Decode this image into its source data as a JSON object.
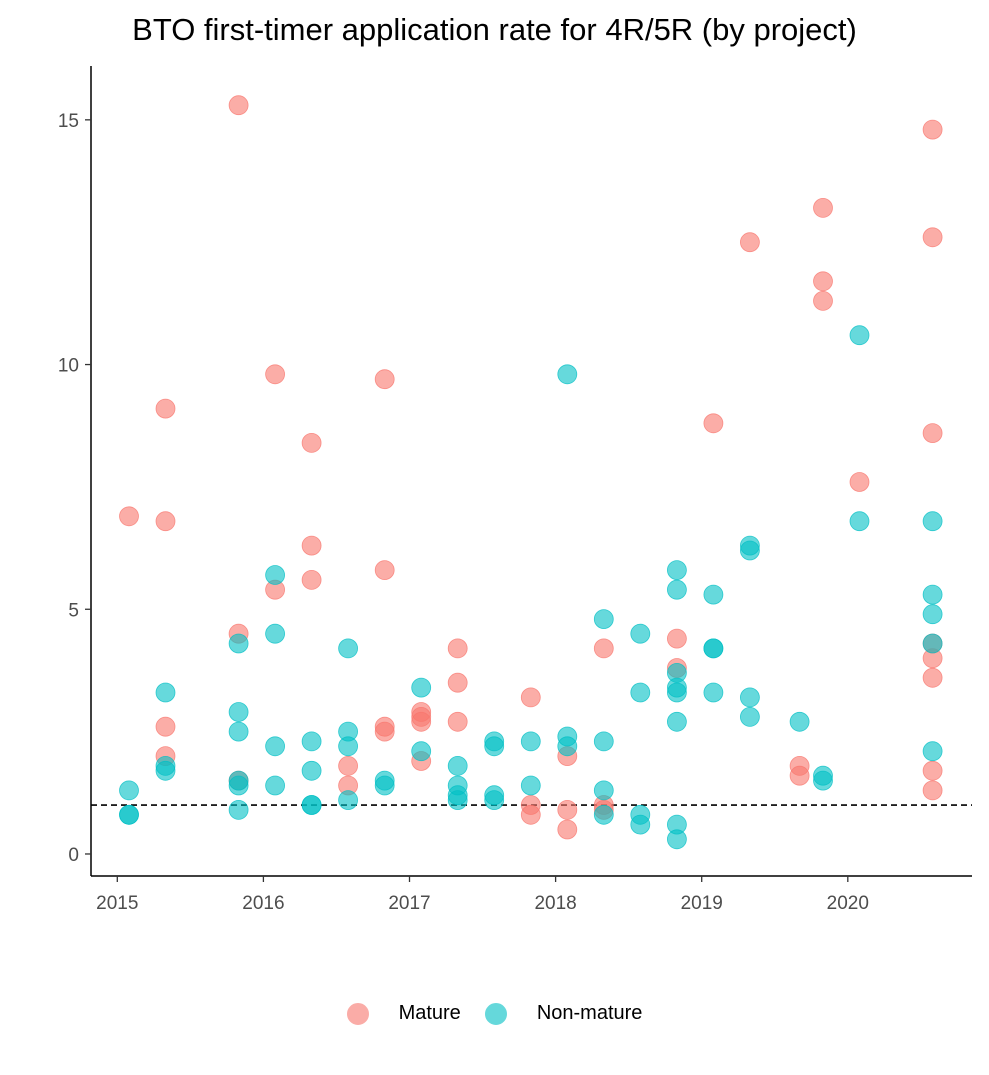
{
  "chart_data": {
    "type": "scatter",
    "title": "BTO first-timer application rate for 4R/5R (by project)",
    "xlabel": "",
    "ylabel": "",
    "xlim": [
      2014.82,
      2020.85
    ],
    "ylim": [
      -0.45,
      16.1
    ],
    "x_ticks": [
      "2015",
      "2016",
      "2017",
      "2018",
      "2019",
      "2020"
    ],
    "y_ticks": [
      "0",
      "5",
      "10",
      "15"
    ],
    "reference_line": {
      "y": 1,
      "style": "dashed"
    },
    "legend_position": "bottom",
    "series": [
      {
        "name": "Mature",
        "color": "#F8766D",
        "points": [
          [
            2015.08,
            6.9
          ],
          [
            2015.33,
            9.1
          ],
          [
            2015.33,
            6.8
          ],
          [
            2015.33,
            2.6
          ],
          [
            2015.33,
            2.0
          ],
          [
            2015.83,
            15.3
          ],
          [
            2015.83,
            4.5
          ],
          [
            2015.83,
            1.5
          ],
          [
            2016.08,
            9.8
          ],
          [
            2016.08,
            5.4
          ],
          [
            2016.33,
            8.4
          ],
          [
            2016.33,
            6.3
          ],
          [
            2016.33,
            5.6
          ],
          [
            2016.58,
            1.8
          ],
          [
            2016.58,
            1.4
          ],
          [
            2016.83,
            9.7
          ],
          [
            2016.83,
            5.8
          ],
          [
            2016.83,
            2.6
          ],
          [
            2016.83,
            2.5
          ],
          [
            2017.08,
            2.9
          ],
          [
            2017.08,
            2.8
          ],
          [
            2017.08,
            2.7
          ],
          [
            2017.08,
            1.9
          ],
          [
            2017.33,
            4.2
          ],
          [
            2017.33,
            3.5
          ],
          [
            2017.33,
            2.7
          ],
          [
            2017.83,
            3.2
          ],
          [
            2017.83,
            1.0
          ],
          [
            2017.83,
            0.8
          ],
          [
            2018.08,
            2.0
          ],
          [
            2018.08,
            0.9
          ],
          [
            2018.08,
            0.5
          ],
          [
            2018.33,
            4.2
          ],
          [
            2018.33,
            1.0
          ],
          [
            2018.33,
            0.9
          ],
          [
            2018.83,
            4.4
          ],
          [
            2018.83,
            3.8
          ],
          [
            2019.08,
            8.8
          ],
          [
            2019.33,
            12.5
          ],
          [
            2019.67,
            1.8
          ],
          [
            2019.67,
            1.6
          ],
          [
            2019.83,
            13.2
          ],
          [
            2019.83,
            11.7
          ],
          [
            2019.83,
            11.3
          ],
          [
            2020.08,
            7.6
          ],
          [
            2020.58,
            14.8
          ],
          [
            2020.58,
            12.6
          ],
          [
            2020.58,
            8.6
          ],
          [
            2020.58,
            4.3
          ],
          [
            2020.58,
            4.0
          ],
          [
            2020.58,
            3.6
          ],
          [
            2020.58,
            1.7
          ],
          [
            2020.58,
            1.3
          ]
        ]
      },
      {
        "name": "Non-mature",
        "color": "#00BFC4",
        "points": [
          [
            2015.08,
            1.3
          ],
          [
            2015.08,
            0.8
          ],
          [
            2015.08,
            0.8
          ],
          [
            2015.33,
            3.3
          ],
          [
            2015.33,
            1.8
          ],
          [
            2015.33,
            1.7
          ],
          [
            2015.83,
            4.3
          ],
          [
            2015.83,
            2.9
          ],
          [
            2015.83,
            2.5
          ],
          [
            2015.83,
            1.5
          ],
          [
            2015.83,
            1.4
          ],
          [
            2015.83,
            0.9
          ],
          [
            2016.08,
            5.7
          ],
          [
            2016.08,
            4.5
          ],
          [
            2016.08,
            2.2
          ],
          [
            2016.08,
            1.4
          ],
          [
            2016.33,
            2.3
          ],
          [
            2016.33,
            1.7
          ],
          [
            2016.33,
            1.0
          ],
          [
            2016.33,
            1.0
          ],
          [
            2016.58,
            4.2
          ],
          [
            2016.58,
            2.5
          ],
          [
            2016.58,
            2.2
          ],
          [
            2016.58,
            1.1
          ],
          [
            2016.83,
            1.5
          ],
          [
            2016.83,
            1.4
          ],
          [
            2017.08,
            3.4
          ],
          [
            2017.08,
            2.1
          ],
          [
            2017.33,
            1.8
          ],
          [
            2017.33,
            1.4
          ],
          [
            2017.33,
            1.2
          ],
          [
            2017.33,
            1.1
          ],
          [
            2017.58,
            2.3
          ],
          [
            2017.58,
            2.2
          ],
          [
            2017.58,
            1.2
          ],
          [
            2017.58,
            1.1
          ],
          [
            2017.83,
            2.3
          ],
          [
            2017.83,
            1.4
          ],
          [
            2018.08,
            9.8
          ],
          [
            2018.08,
            2.4
          ],
          [
            2018.08,
            2.2
          ],
          [
            2018.33,
            4.8
          ],
          [
            2018.33,
            2.3
          ],
          [
            2018.33,
            1.3
          ],
          [
            2018.33,
            0.8
          ],
          [
            2018.58,
            4.5
          ],
          [
            2018.58,
            3.3
          ],
          [
            2018.58,
            0.8
          ],
          [
            2018.58,
            0.6
          ],
          [
            2018.83,
            5.8
          ],
          [
            2018.83,
            5.4
          ],
          [
            2018.83,
            3.7
          ],
          [
            2018.83,
            3.4
          ],
          [
            2018.83,
            3.3
          ],
          [
            2018.83,
            2.7
          ],
          [
            2018.83,
            0.6
          ],
          [
            2018.83,
            0.3
          ],
          [
            2019.08,
            5.3
          ],
          [
            2019.08,
            4.2
          ],
          [
            2019.08,
            4.2
          ],
          [
            2019.08,
            3.3
          ],
          [
            2019.33,
            6.3
          ],
          [
            2019.33,
            6.2
          ],
          [
            2019.33,
            3.2
          ],
          [
            2019.33,
            2.8
          ],
          [
            2019.67,
            2.7
          ],
          [
            2019.83,
            1.6
          ],
          [
            2019.83,
            1.5
          ],
          [
            2020.08,
            10.6
          ],
          [
            2020.08,
            6.8
          ],
          [
            2020.58,
            6.8
          ],
          [
            2020.58,
            5.3
          ],
          [
            2020.58,
            4.9
          ],
          [
            2020.58,
            4.3
          ],
          [
            2020.58,
            2.1
          ]
        ]
      }
    ]
  }
}
